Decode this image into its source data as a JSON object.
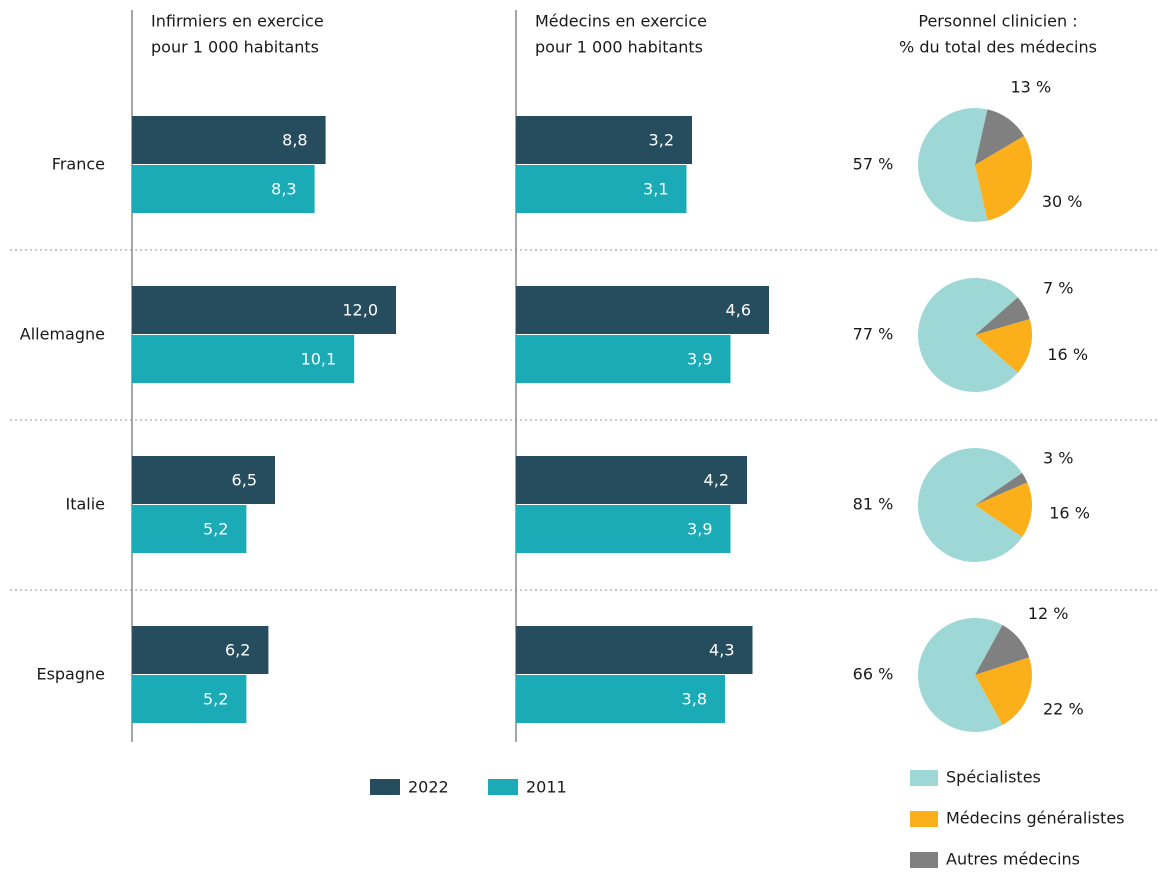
{
  "chart_data": [
    {
      "type": "bar",
      "orientation": "horizontal",
      "title": [
        "Infirmiers en exercice",
        "pour 1 000 habitants"
      ],
      "categories": [
        "France",
        "Allemagne",
        "Italie",
        "Espagne"
      ],
      "series": [
        {
          "name": "2022",
          "color": "#264d5e",
          "values": [
            8.8,
            12.0,
            6.5,
            6.2
          ],
          "value_labels": [
            "8,8",
            "12,0",
            "6,5",
            "6,2"
          ]
        },
        {
          "name": "2011",
          "color": "#1aabb6",
          "values": [
            8.3,
            10.1,
            5.2,
            5.2
          ],
          "value_labels": [
            "8,3",
            "10,1",
            "5,2",
            "5,2"
          ]
        }
      ],
      "xlim": [
        0,
        17
      ]
    },
    {
      "type": "bar",
      "orientation": "horizontal",
      "title": [
        "Médecins en exercice",
        "pour 1 000 habitants"
      ],
      "series": [
        {
          "color": "#264d5e",
          "values": [
            3.2,
            4.6,
            4.2,
            4.3
          ],
          "value_labels": [
            "3,2",
            "4,6",
            "4,2",
            "4,3"
          ]
        },
        {
          "color": "#1aabb6",
          "values": [
            3.1,
            3.9,
            3.9,
            3.8
          ],
          "value_labels": [
            "3,1",
            "3,9",
            "3,9",
            "3,8"
          ]
        }
      ],
      "xlim": [
        0,
        6
      ]
    },
    {
      "type": "pie",
      "title": [
        "Personnel clinicien :",
        "% du total des médecins"
      ],
      "categories": [
        "Spécialistes",
        "Médecins généralistes",
        "Autres médecins"
      ],
      "colors": [
        "#9ed8d6",
        "#fbb01b",
        "#808080"
      ],
      "series": [
        {
          "values": [
            57,
            30,
            13
          ],
          "value_labels": [
            "57 %",
            "30 %",
            "13 %"
          ]
        },
        {
          "values": [
            77,
            16,
            7
          ],
          "value_labels": [
            "77 %",
            "16 %",
            "7 %"
          ]
        },
        {
          "values": [
            81,
            16,
            3
          ],
          "value_labels": [
            "81 %",
            "16 %",
            "3 %"
          ]
        },
        {
          "values": [
            66,
            22,
            12
          ],
          "value_labels": [
            "66 %",
            "22 %",
            "12 %"
          ]
        }
      ]
    }
  ]
}
